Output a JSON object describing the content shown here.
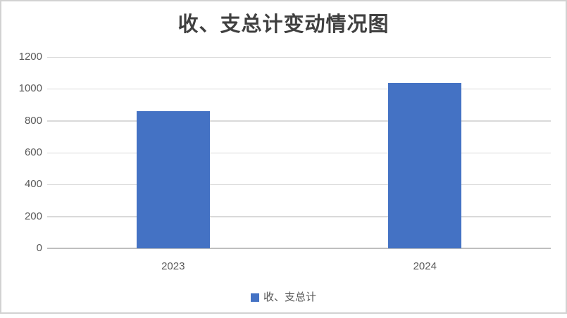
{
  "chart_data": {
    "type": "bar",
    "title": "收、支总计变动情况图",
    "categories": [
      "2023",
      "2024"
    ],
    "series": [
      {
        "name": "收、支总计",
        "values": [
          860,
          1035
        ]
      }
    ],
    "xlabel": "",
    "ylabel": "",
    "ylim": [
      0,
      1200
    ],
    "y_ticks": [
      0,
      200,
      400,
      600,
      800,
      1000,
      1200
    ],
    "grid": "horizontal",
    "legend_position": "bottom",
    "colors": {
      "bar": "#4472C4",
      "gridline": "#D9D9D9",
      "axis_line": "#BFBFBF",
      "tick_label": "#595959",
      "title": "#404040",
      "frame_border": "#D2D2D2",
      "background": "#FFFFFF"
    }
  }
}
